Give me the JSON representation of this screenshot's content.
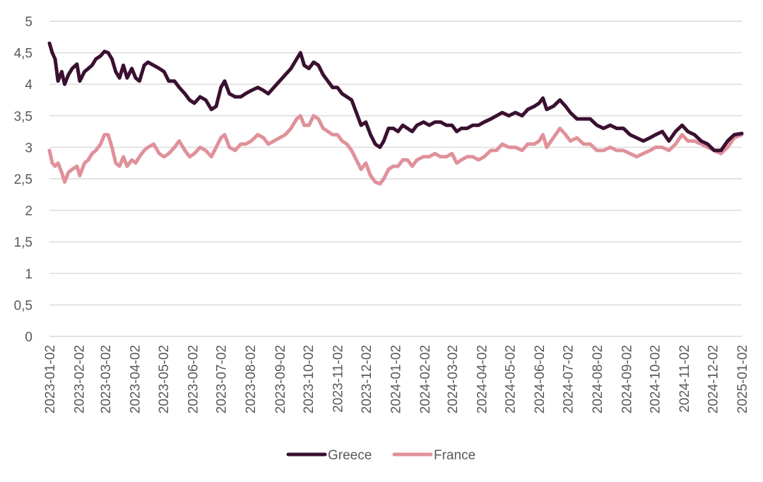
{
  "chart_data": {
    "type": "line",
    "title": "",
    "xlabel": "",
    "ylabel": "",
    "ylim": [
      0,
      5
    ],
    "yticks": [
      0,
      0.5,
      1,
      1.5,
      2,
      2.5,
      3,
      3.5,
      4,
      4.5,
      5
    ],
    "ytick_labels": [
      "0",
      "0,5",
      "1",
      "1,5",
      "2",
      "2,5",
      "3",
      "3,5",
      "4",
      "4,5",
      "5"
    ],
    "xlim": [
      "2023-01-02",
      "2025-01-02"
    ],
    "x_tick_labels": [
      "2023-01-02",
      "2023-02-02",
      "2023-03-02",
      "2023-04-02",
      "2023-05-02",
      "2023-06-02",
      "2023-07-02",
      "2023-08-02",
      "2023-09-02",
      "2023-10-02",
      "2023-11-02",
      "2023-12-02",
      "2024-01-02",
      "2024-02-02",
      "2024-03-02",
      "2024-04-02",
      "2024-05-02",
      "2024-06-02",
      "2024-07-02",
      "2024-08-02",
      "2024-09-02",
      "2024-10-02",
      "2024-11-02",
      "2024-12-02",
      "2025-01-02"
    ],
    "grid": true,
    "legend": "bottom",
    "series": [
      {
        "name": "Greece",
        "color": "#3a1030",
        "points": [
          [
            "2023-01-02",
            4.65
          ],
          [
            "2023-01-05",
            4.5
          ],
          [
            "2023-01-08",
            4.4
          ],
          [
            "2023-01-11",
            4.05
          ],
          [
            "2023-01-15",
            4.2
          ],
          [
            "2023-01-18",
            4.0
          ],
          [
            "2023-01-22",
            4.15
          ],
          [
            "2023-01-26",
            4.25
          ],
          [
            "2023-01-31",
            4.32
          ],
          [
            "2023-02-03",
            4.05
          ],
          [
            "2023-02-08",
            4.2
          ],
          [
            "2023-02-12",
            4.25
          ],
          [
            "2023-02-16",
            4.3
          ],
          [
            "2023-02-20",
            4.4
          ],
          [
            "2023-02-25",
            4.45
          ],
          [
            "2023-03-01",
            4.52
          ],
          [
            "2023-03-05",
            4.5
          ],
          [
            "2023-03-09",
            4.4
          ],
          [
            "2023-03-13",
            4.2
          ],
          [
            "2023-03-17",
            4.1
          ],
          [
            "2023-03-21",
            4.3
          ],
          [
            "2023-03-25",
            4.1
          ],
          [
            "2023-03-30",
            4.25
          ],
          [
            "2023-04-03",
            4.1
          ],
          [
            "2023-04-07",
            4.05
          ],
          [
            "2023-04-12",
            4.3
          ],
          [
            "2023-04-16",
            4.35
          ],
          [
            "2023-04-22",
            4.3
          ],
          [
            "2023-04-28",
            4.25
          ],
          [
            "2023-05-03",
            4.2
          ],
          [
            "2023-05-08",
            4.05
          ],
          [
            "2023-05-14",
            4.05
          ],
          [
            "2023-05-19",
            3.95
          ],
          [
            "2023-05-25",
            3.85
          ],
          [
            "2023-05-30",
            3.75
          ],
          [
            "2023-06-04",
            3.7
          ],
          [
            "2023-06-10",
            3.8
          ],
          [
            "2023-06-16",
            3.75
          ],
          [
            "2023-06-22",
            3.6
          ],
          [
            "2023-06-27",
            3.65
          ],
          [
            "2023-07-02",
            3.95
          ],
          [
            "2023-07-06",
            4.05
          ],
          [
            "2023-07-11",
            3.85
          ],
          [
            "2023-07-17",
            3.8
          ],
          [
            "2023-07-23",
            3.8
          ],
          [
            "2023-07-28",
            3.85
          ],
          [
            "2023-08-03",
            3.9
          ],
          [
            "2023-08-10",
            3.95
          ],
          [
            "2023-08-16",
            3.9
          ],
          [
            "2023-08-21",
            3.85
          ],
          [
            "2023-08-27",
            3.95
          ],
          [
            "2023-09-02",
            4.05
          ],
          [
            "2023-09-08",
            4.15
          ],
          [
            "2023-09-14",
            4.25
          ],
          [
            "2023-09-20",
            4.4
          ],
          [
            "2023-09-24",
            4.5
          ],
          [
            "2023-09-28",
            4.3
          ],
          [
            "2023-10-03",
            4.25
          ],
          [
            "2023-10-08",
            4.35
          ],
          [
            "2023-10-13",
            4.3
          ],
          [
            "2023-10-18",
            4.15
          ],
          [
            "2023-10-23",
            4.05
          ],
          [
            "2023-10-28",
            3.95
          ],
          [
            "2023-11-02",
            3.95
          ],
          [
            "2023-11-07",
            3.85
          ],
          [
            "2023-11-12",
            3.8
          ],
          [
            "2023-11-17",
            3.75
          ],
          [
            "2023-11-22",
            3.55
          ],
          [
            "2023-11-27",
            3.35
          ],
          [
            "2023-12-02",
            3.4
          ],
          [
            "2023-12-07",
            3.2
          ],
          [
            "2023-12-12",
            3.05
          ],
          [
            "2023-12-17",
            3.0
          ],
          [
            "2023-12-21",
            3.1
          ],
          [
            "2023-12-26",
            3.3
          ],
          [
            "2023-12-31",
            3.3
          ],
          [
            "2024-01-05",
            3.25
          ],
          [
            "2024-01-10",
            3.35
          ],
          [
            "2024-01-15",
            3.3
          ],
          [
            "2024-01-20",
            3.25
          ],
          [
            "2024-01-25",
            3.35
          ],
          [
            "2024-02-01",
            3.4
          ],
          [
            "2024-02-07",
            3.35
          ],
          [
            "2024-02-13",
            3.4
          ],
          [
            "2024-02-19",
            3.4
          ],
          [
            "2024-02-25",
            3.35
          ],
          [
            "2024-03-02",
            3.35
          ],
          [
            "2024-03-07",
            3.25
          ],
          [
            "2024-03-12",
            3.3
          ],
          [
            "2024-03-18",
            3.3
          ],
          [
            "2024-03-24",
            3.35
          ],
          [
            "2024-03-30",
            3.35
          ],
          [
            "2024-04-05",
            3.4
          ],
          [
            "2024-04-12",
            3.45
          ],
          [
            "2024-04-18",
            3.5
          ],
          [
            "2024-04-24",
            3.55
          ],
          [
            "2024-05-01",
            3.5
          ],
          [
            "2024-05-08",
            3.55
          ],
          [
            "2024-05-15",
            3.5
          ],
          [
            "2024-05-21",
            3.6
          ],
          [
            "2024-05-28",
            3.65
          ],
          [
            "2024-06-02",
            3.7
          ],
          [
            "2024-06-06",
            3.78
          ],
          [
            "2024-06-10",
            3.6
          ],
          [
            "2024-06-17",
            3.65
          ],
          [
            "2024-06-24",
            3.75
          ],
          [
            "2024-06-30",
            3.65
          ],
          [
            "2024-07-05",
            3.55
          ],
          [
            "2024-07-12",
            3.45
          ],
          [
            "2024-07-19",
            3.45
          ],
          [
            "2024-07-26",
            3.45
          ],
          [
            "2024-08-02",
            3.35
          ],
          [
            "2024-08-09",
            3.3
          ],
          [
            "2024-08-16",
            3.35
          ],
          [
            "2024-08-23",
            3.3
          ],
          [
            "2024-08-30",
            3.3
          ],
          [
            "2024-09-06",
            3.2
          ],
          [
            "2024-09-13",
            3.15
          ],
          [
            "2024-09-20",
            3.1
          ],
          [
            "2024-09-27",
            3.15
          ],
          [
            "2024-10-03",
            3.2
          ],
          [
            "2024-10-10",
            3.25
          ],
          [
            "2024-10-17",
            3.1
          ],
          [
            "2024-10-24",
            3.25
          ],
          [
            "2024-10-31",
            3.35
          ],
          [
            "2024-11-06",
            3.25
          ],
          [
            "2024-11-13",
            3.2
          ],
          [
            "2024-11-20",
            3.1
          ],
          [
            "2024-11-27",
            3.05
          ],
          [
            "2024-12-04",
            2.95
          ],
          [
            "2024-12-11",
            2.95
          ],
          [
            "2024-12-18",
            3.1
          ],
          [
            "2024-12-25",
            3.2
          ],
          [
            "2025-01-02",
            3.22
          ]
        ]
      },
      {
        "name": "France",
        "color": "#e0919a",
        "points": [
          [
            "2023-01-02",
            2.95
          ],
          [
            "2023-01-05",
            2.75
          ],
          [
            "2023-01-08",
            2.7
          ],
          [
            "2023-01-11",
            2.75
          ],
          [
            "2023-01-15",
            2.6
          ],
          [
            "2023-01-18",
            2.45
          ],
          [
            "2023-01-22",
            2.6
          ],
          [
            "2023-01-26",
            2.65
          ],
          [
            "2023-01-31",
            2.7
          ],
          [
            "2023-02-03",
            2.55
          ],
          [
            "2023-02-08",
            2.75
          ],
          [
            "2023-02-12",
            2.8
          ],
          [
            "2023-02-16",
            2.9
          ],
          [
            "2023-02-20",
            2.95
          ],
          [
            "2023-02-25",
            3.05
          ],
          [
            "2023-03-01",
            3.2
          ],
          [
            "2023-03-05",
            3.2
          ],
          [
            "2023-03-09",
            3.0
          ],
          [
            "2023-03-13",
            2.75
          ],
          [
            "2023-03-17",
            2.7
          ],
          [
            "2023-03-21",
            2.85
          ],
          [
            "2023-03-25",
            2.7
          ],
          [
            "2023-03-30",
            2.8
          ],
          [
            "2023-04-03",
            2.75
          ],
          [
            "2023-04-07",
            2.85
          ],
          [
            "2023-04-12",
            2.95
          ],
          [
            "2023-04-16",
            3.0
          ],
          [
            "2023-04-22",
            3.05
          ],
          [
            "2023-04-28",
            2.9
          ],
          [
            "2023-05-03",
            2.85
          ],
          [
            "2023-05-08",
            2.9
          ],
          [
            "2023-05-14",
            3.0
          ],
          [
            "2023-05-19",
            3.1
          ],
          [
            "2023-05-25",
            2.95
          ],
          [
            "2023-05-30",
            2.85
          ],
          [
            "2023-06-04",
            2.9
          ],
          [
            "2023-06-10",
            3.0
          ],
          [
            "2023-06-16",
            2.95
          ],
          [
            "2023-06-22",
            2.85
          ],
          [
            "2023-06-27",
            3.0
          ],
          [
            "2023-07-02",
            3.15
          ],
          [
            "2023-07-06",
            3.2
          ],
          [
            "2023-07-11",
            3.0
          ],
          [
            "2023-07-17",
            2.95
          ],
          [
            "2023-07-23",
            3.05
          ],
          [
            "2023-07-28",
            3.05
          ],
          [
            "2023-08-03",
            3.1
          ],
          [
            "2023-08-10",
            3.2
          ],
          [
            "2023-08-16",
            3.15
          ],
          [
            "2023-08-21",
            3.05
          ],
          [
            "2023-08-27",
            3.1
          ],
          [
            "2023-09-02",
            3.15
          ],
          [
            "2023-09-08",
            3.2
          ],
          [
            "2023-09-14",
            3.3
          ],
          [
            "2023-09-20",
            3.45
          ],
          [
            "2023-09-24",
            3.5
          ],
          [
            "2023-09-28",
            3.35
          ],
          [
            "2023-10-03",
            3.35
          ],
          [
            "2023-10-08",
            3.5
          ],
          [
            "2023-10-13",
            3.45
          ],
          [
            "2023-10-18",
            3.3
          ],
          [
            "2023-10-23",
            3.25
          ],
          [
            "2023-10-28",
            3.2
          ],
          [
            "2023-11-02",
            3.2
          ],
          [
            "2023-11-07",
            3.1
          ],
          [
            "2023-11-12",
            3.05
          ],
          [
            "2023-11-17",
            2.95
          ],
          [
            "2023-11-22",
            2.8
          ],
          [
            "2023-11-27",
            2.65
          ],
          [
            "2023-12-02",
            2.75
          ],
          [
            "2023-12-07",
            2.55
          ],
          [
            "2023-12-12",
            2.45
          ],
          [
            "2023-12-17",
            2.42
          ],
          [
            "2023-12-21",
            2.5
          ],
          [
            "2023-12-26",
            2.65
          ],
          [
            "2023-12-31",
            2.7
          ],
          [
            "2024-01-05",
            2.7
          ],
          [
            "2024-01-10",
            2.8
          ],
          [
            "2024-01-15",
            2.8
          ],
          [
            "2024-01-20",
            2.7
          ],
          [
            "2024-01-25",
            2.8
          ],
          [
            "2024-02-01",
            2.85
          ],
          [
            "2024-02-07",
            2.85
          ],
          [
            "2024-02-13",
            2.9
          ],
          [
            "2024-02-19",
            2.85
          ],
          [
            "2024-02-25",
            2.85
          ],
          [
            "2024-03-02",
            2.9
          ],
          [
            "2024-03-07",
            2.75
          ],
          [
            "2024-03-12",
            2.8
          ],
          [
            "2024-03-18",
            2.85
          ],
          [
            "2024-03-24",
            2.85
          ],
          [
            "2024-03-30",
            2.8
          ],
          [
            "2024-04-05",
            2.85
          ],
          [
            "2024-04-12",
            2.95
          ],
          [
            "2024-04-18",
            2.95
          ],
          [
            "2024-04-24",
            3.05
          ],
          [
            "2024-05-01",
            3.0
          ],
          [
            "2024-05-08",
            3.0
          ],
          [
            "2024-05-15",
            2.95
          ],
          [
            "2024-05-21",
            3.05
          ],
          [
            "2024-05-28",
            3.05
          ],
          [
            "2024-06-02",
            3.1
          ],
          [
            "2024-06-06",
            3.2
          ],
          [
            "2024-06-10",
            3.0
          ],
          [
            "2024-06-17",
            3.15
          ],
          [
            "2024-06-24",
            3.3
          ],
          [
            "2024-06-30",
            3.2
          ],
          [
            "2024-07-05",
            3.1
          ],
          [
            "2024-07-12",
            3.15
          ],
          [
            "2024-07-19",
            3.05
          ],
          [
            "2024-07-26",
            3.05
          ],
          [
            "2024-08-02",
            2.95
          ],
          [
            "2024-08-09",
            2.95
          ],
          [
            "2024-08-16",
            3.0
          ],
          [
            "2024-08-23",
            2.95
          ],
          [
            "2024-08-30",
            2.95
          ],
          [
            "2024-09-06",
            2.9
          ],
          [
            "2024-09-13",
            2.85
          ],
          [
            "2024-09-20",
            2.9
          ],
          [
            "2024-09-27",
            2.95
          ],
          [
            "2024-10-03",
            3.0
          ],
          [
            "2024-10-10",
            3.0
          ],
          [
            "2024-10-17",
            2.95
          ],
          [
            "2024-10-24",
            3.05
          ],
          [
            "2024-10-31",
            3.2
          ],
          [
            "2024-11-06",
            3.1
          ],
          [
            "2024-11-13",
            3.1
          ],
          [
            "2024-11-20",
            3.05
          ],
          [
            "2024-11-27",
            3.0
          ],
          [
            "2024-12-04",
            2.95
          ],
          [
            "2024-12-11",
            2.9
          ],
          [
            "2024-12-18",
            3.0
          ],
          [
            "2024-12-25",
            3.15
          ],
          [
            "2025-01-02",
            3.2
          ]
        ]
      }
    ]
  }
}
